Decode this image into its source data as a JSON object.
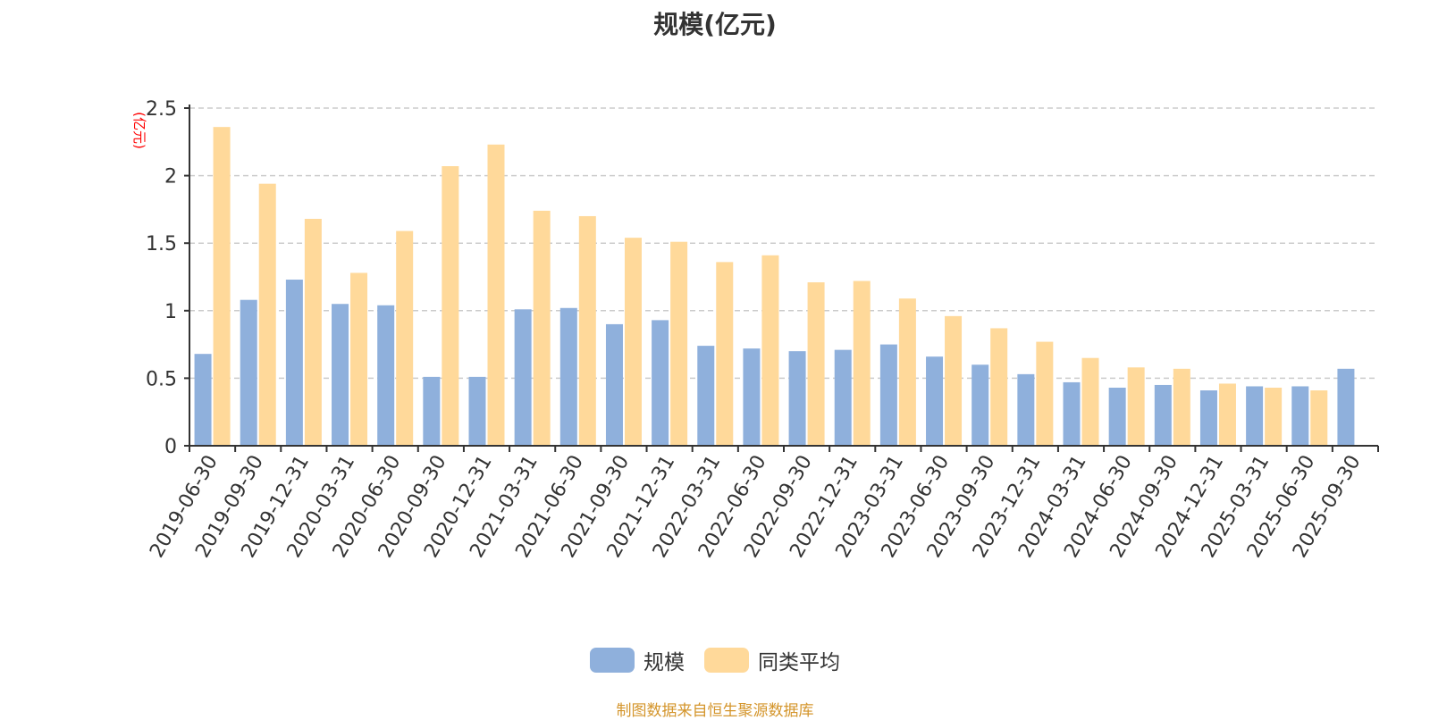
{
  "chart_data": {
    "type": "bar",
    "title": "规模(亿元)",
    "ylabel": "(亿元)",
    "xlabel": "",
    "ylim": [
      0,
      2.5
    ],
    "yticks": [
      "0",
      "0.5",
      "1",
      "1.5",
      "2",
      "2.5"
    ],
    "grid": true,
    "legend_position": "bottom",
    "categories": [
      "2019-06-30",
      "2019-09-30",
      "2019-12-31",
      "2020-03-31",
      "2020-06-30",
      "2020-09-30",
      "2020-12-31",
      "2021-03-31",
      "2021-06-30",
      "2021-09-30",
      "2021-12-31",
      "2022-03-31",
      "2022-06-30",
      "2022-09-30",
      "2022-12-31",
      "2023-03-31",
      "2023-06-30",
      "2023-09-30",
      "2023-12-31",
      "2024-03-31",
      "2024-06-30",
      "2024-09-30",
      "2024-12-31",
      "2025-03-31",
      "2025-06-30",
      "2025-09-30"
    ],
    "series": [
      {
        "name": "规模",
        "color": "#8fb0dc",
        "values": [
          0.68,
          1.08,
          1.23,
          1.05,
          1.04,
          0.51,
          0.51,
          1.01,
          1.02,
          0.9,
          0.93,
          0.74,
          0.72,
          0.7,
          0.71,
          0.75,
          0.66,
          0.6,
          0.53,
          0.47,
          0.43,
          0.45,
          0.41,
          0.44,
          0.44,
          0.57
        ]
      },
      {
        "name": "同类平均",
        "color": "#ffd99a",
        "values": [
          2.36,
          1.94,
          1.68,
          1.28,
          1.59,
          2.07,
          2.23,
          1.74,
          1.7,
          1.54,
          1.51,
          1.36,
          1.41,
          1.21,
          1.22,
          1.09,
          0.96,
          0.87,
          0.77,
          0.65,
          0.58,
          0.57,
          0.46,
          0.43,
          0.41,
          null
        ]
      }
    ]
  },
  "colors": {
    "axis": "#333333",
    "grid": "#cccccc",
    "ylabel": "#ff0000",
    "source": "#d4952b"
  },
  "source_text": "制图数据来自恒生聚源数据库"
}
